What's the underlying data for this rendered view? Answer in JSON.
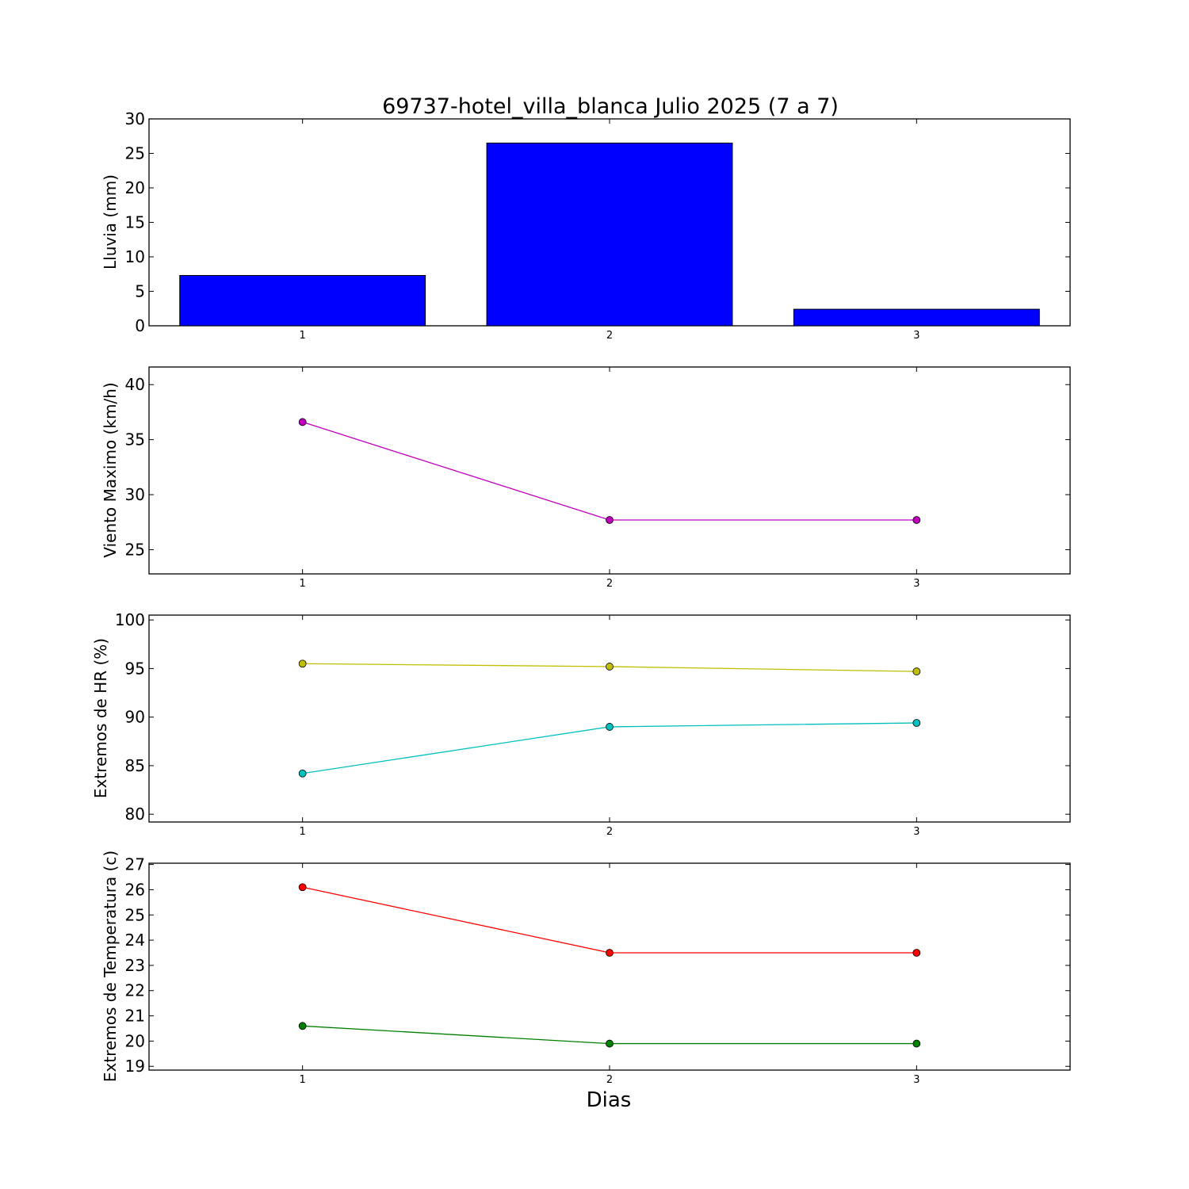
{
  "chart_data": [
    {
      "type": "bar",
      "title": "69737-hotel_villa_blanca Julio 2025  (7 a 7)",
      "ylabel": "Lluvia (mm)",
      "xlabel": "",
      "categories": [
        "1",
        "2",
        "3"
      ],
      "values": [
        7.3,
        26.5,
        2.4
      ],
      "ylim": [
        0,
        30
      ],
      "yticks": [
        "0",
        "5",
        "10",
        "15",
        "20",
        "25",
        "30"
      ],
      "xlim": [
        0.5,
        3.5
      ],
      "color": "#0000ff",
      "grid": false
    },
    {
      "type": "line",
      "title": "",
      "ylabel": "Viento Maximo (km/h)",
      "xlabel": "",
      "x": [
        1,
        2,
        3
      ],
      "series": [
        {
          "values": [
            36.6,
            27.7,
            27.7
          ],
          "color": "#bf00bf"
        }
      ],
      "ylim": [
        22.8,
        41.6
      ],
      "yticks": [
        "25",
        "30",
        "35",
        "40"
      ],
      "xticks": [
        "1",
        "2",
        "3"
      ],
      "xlim": [
        0.5,
        3.5
      ],
      "grid": false
    },
    {
      "type": "line",
      "title": "",
      "ylabel": "Extremos de HR (%)",
      "xlabel": "",
      "x": [
        1,
        2,
        3
      ],
      "series": [
        {
          "values": [
            95.5,
            95.2,
            94.7
          ],
          "color": "#bfbf00"
        },
        {
          "values": [
            84.2,
            89.0,
            89.4
          ],
          "color": "#00bfbf"
        }
      ],
      "ylim": [
        79.2,
        100.5
      ],
      "yticks": [
        "80",
        "85",
        "90",
        "95",
        "100"
      ],
      "xticks": [
        "1",
        "2",
        "3"
      ],
      "xlim": [
        0.5,
        3.5
      ],
      "grid": false
    },
    {
      "type": "line",
      "title": "",
      "ylabel": "Extremos de Temperatura (c)",
      "xlabel": "Dias",
      "x": [
        1,
        2,
        3
      ],
      "series": [
        {
          "values": [
            26.1,
            23.5,
            23.5
          ],
          "color": "#ff0000"
        },
        {
          "values": [
            20.6,
            19.9,
            19.9
          ],
          "color": "#008000"
        }
      ],
      "ylim": [
        18.85,
        27.05
      ],
      "yticks": [
        "19",
        "20",
        "21",
        "22",
        "23",
        "24",
        "25",
        "26",
        "27"
      ],
      "xticks": [
        "1",
        "2",
        "3"
      ],
      "xlim": [
        0.5,
        3.5
      ],
      "grid": false
    }
  ]
}
